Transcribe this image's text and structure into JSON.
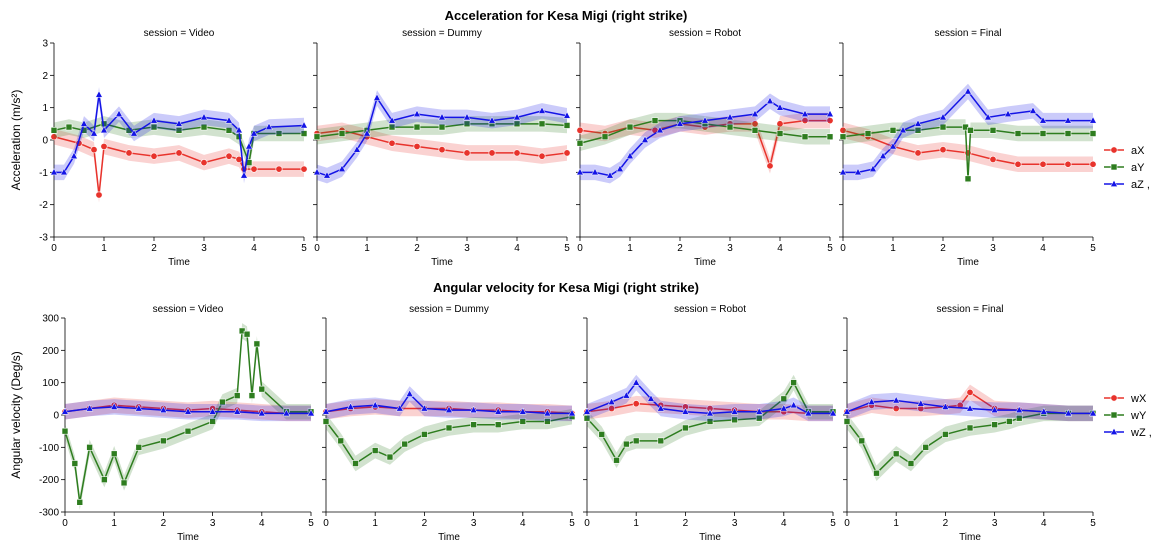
{
  "chart_data": [
    {
      "type": "line",
      "title": "Acceleration for Kesa Migi (right strike)",
      "ylabel": "Acceleration (m/s²)",
      "xlabel": "Time",
      "xlim": [
        0,
        5
      ],
      "ylim": [
        -3,
        3
      ],
      "xticks": [
        0,
        1,
        2,
        3,
        4,
        5
      ],
      "yticks": [
        -3,
        -2,
        -1,
        0,
        1,
        2,
        3
      ],
      "legend": {
        "position": "right",
        "labels": [
          "aX",
          "aY",
          "aZ ,"
        ]
      },
      "colors": {
        "aX": "#e8332c",
        "aY": "#2e7d1f",
        "aZ": "#1414e6"
      },
      "facets": [
        {
          "label": "session = Video",
          "series": [
            {
              "name": "aX",
              "x": [
                0,
                0.5,
                0.8,
                0.9,
                1.0,
                1.5,
                2.0,
                2.5,
                3.0,
                3.5,
                3.7,
                3.8,
                4.0,
                4.5,
                5.0
              ],
              "y": [
                0.1,
                -0.1,
                -0.3,
                -1.7,
                -0.2,
                -0.4,
                -0.5,
                -0.4,
                -0.7,
                -0.5,
                -0.6,
                -0.9,
                -0.9,
                -0.9,
                -0.9
              ]
            },
            {
              "name": "aY",
              "x": [
                0,
                0.3,
                0.6,
                1.0,
                1.5,
                2.0,
                2.5,
                3.0,
                3.5,
                3.7,
                3.9,
                4.0,
                4.5,
                5.0
              ],
              "y": [
                0.3,
                0.4,
                0.3,
                0.5,
                0.3,
                0.4,
                0.3,
                0.4,
                0.3,
                0.1,
                -0.7,
                0.2,
                0.2,
                0.2
              ]
            },
            {
              "name": "aZ",
              "x": [
                0,
                0.2,
                0.4,
                0.6,
                0.8,
                0.9,
                1.0,
                1.3,
                1.6,
                2.0,
                2.5,
                3.0,
                3.5,
                3.7,
                3.8,
                3.9,
                4.0,
                4.3,
                5.0
              ],
              "y": [
                -1.0,
                -1.0,
                -0.5,
                0.5,
                0.2,
                1.4,
                0.3,
                0.8,
                0.2,
                0.6,
                0.5,
                0.7,
                0.6,
                0.3,
                -1.1,
                -0.2,
                0.2,
                0.4,
                0.45
              ]
            }
          ]
        },
        {
          "label": "session = Dummy",
          "series": [
            {
              "name": "aX",
              "x": [
                0,
                0.5,
                1.0,
                1.5,
                2.0,
                2.5,
                3.0,
                3.5,
                4.0,
                4.5,
                5.0
              ],
              "y": [
                0.2,
                0.3,
                0.1,
                -0.1,
                -0.2,
                -0.3,
                -0.4,
                -0.4,
                -0.4,
                -0.5,
                -0.4
              ]
            },
            {
              "name": "aY",
              "x": [
                0,
                0.5,
                1.0,
                1.5,
                2.0,
                2.5,
                3.0,
                3.5,
                4.0,
                4.5,
                5.0
              ],
              "y": [
                0.1,
                0.2,
                0.3,
                0.4,
                0.4,
                0.4,
                0.5,
                0.5,
                0.5,
                0.5,
                0.45
              ]
            },
            {
              "name": "aZ",
              "x": [
                0,
                0.2,
                0.5,
                0.8,
                1.0,
                1.2,
                1.5,
                2.0,
                2.5,
                3.0,
                3.5,
                4.0,
                4.5,
                5.0
              ],
              "y": [
                -1.0,
                -1.1,
                -0.9,
                -0.3,
                0.2,
                1.3,
                0.6,
                0.8,
                0.7,
                0.7,
                0.6,
                0.7,
                0.9,
                0.75
              ]
            }
          ]
        },
        {
          "label": "session = Robot",
          "series": [
            {
              "name": "aX",
              "x": [
                0,
                0.5,
                1.0,
                1.5,
                2.0,
                2.5,
                3.0,
                3.5,
                3.8,
                4.0,
                4.5,
                5.0
              ],
              "y": [
                0.3,
                0.2,
                0.4,
                0.3,
                0.5,
                0.4,
                0.5,
                0.5,
                -0.8,
                0.5,
                0.6,
                0.6
              ]
            },
            {
              "name": "aY",
              "x": [
                0,
                0.5,
                1.0,
                1.5,
                2.0,
                2.5,
                3.0,
                3.5,
                4.0,
                4.5,
                5.0
              ],
              "y": [
                -0.1,
                0.1,
                0.4,
                0.6,
                0.6,
                0.5,
                0.4,
                0.3,
                0.2,
                0.1,
                0.1
              ]
            },
            {
              "name": "aZ",
              "x": [
                0,
                0.3,
                0.6,
                0.8,
                1.0,
                1.3,
                1.6,
                2.0,
                2.5,
                3.0,
                3.5,
                3.8,
                4.0,
                4.5,
                5.0
              ],
              "y": [
                -1.0,
                -1.0,
                -1.1,
                -0.9,
                -0.5,
                0.0,
                0.3,
                0.5,
                0.6,
                0.7,
                0.8,
                1.2,
                1.0,
                0.8,
                0.8
              ]
            }
          ]
        },
        {
          "label": "session = Final",
          "series": [
            {
              "name": "aX",
              "x": [
                0,
                0.5,
                1.0,
                1.5,
                2.0,
                2.5,
                3.0,
                3.5,
                4.0,
                4.5,
                5.0
              ],
              "y": [
                0.3,
                0.1,
                -0.2,
                -0.4,
                -0.3,
                -0.4,
                -0.6,
                -0.75,
                -0.75,
                -0.75,
                -0.75
              ]
            },
            {
              "name": "aY",
              "x": [
                0,
                0.5,
                1.0,
                1.5,
                2.0,
                2.45,
                2.5,
                2.55,
                3.0,
                3.5,
                4.0,
                4.5,
                5.0
              ],
              "y": [
                0.1,
                0.2,
                0.3,
                0.3,
                0.4,
                0.4,
                -1.2,
                0.3,
                0.3,
                0.2,
                0.2,
                0.2,
                0.2
              ]
            },
            {
              "name": "aZ",
              "x": [
                0,
                0.3,
                0.6,
                0.8,
                1.0,
                1.2,
                1.5,
                2.0,
                2.5,
                2.9,
                3.3,
                3.8,
                4.0,
                4.5,
                5.0
              ],
              "y": [
                -1.0,
                -1.0,
                -0.9,
                -0.5,
                -0.2,
                0.3,
                0.5,
                0.7,
                1.5,
                0.7,
                0.8,
                0.9,
                0.6,
                0.6,
                0.6
              ]
            }
          ]
        }
      ]
    },
    {
      "type": "line",
      "title": "Angular velocity for Kesa Migi (right strike)",
      "ylabel": "Angular velocity (Deg/s)",
      "xlabel": "Time",
      "xlim": [
        0,
        5
      ],
      "ylim": [
        -300,
        300
      ],
      "xticks": [
        0,
        1,
        2,
        3,
        4,
        5
      ],
      "yticks": [
        -300,
        -200,
        -100,
        0,
        100,
        200,
        300
      ],
      "legend": {
        "position": "right",
        "labels": [
          "wX",
          "wY",
          "wZ ,"
        ]
      },
      "colors": {
        "wX": "#e8332c",
        "wY": "#2e7d1f",
        "wZ": "#1414e6"
      },
      "facets": [
        {
          "label": "session = Video",
          "series": [
            {
              "name": "wX",
              "x": [
                0,
                0.5,
                1.0,
                1.5,
                2.0,
                2.5,
                3.0,
                3.5,
                4.0,
                4.5,
                5.0
              ],
              "y": [
                10,
                20,
                30,
                25,
                20,
                15,
                20,
                15,
                10,
                5,
                5
              ]
            },
            {
              "name": "wY",
              "x": [
                0,
                0.2,
                0.3,
                0.5,
                0.8,
                1.0,
                1.2,
                1.5,
                2.0,
                2.5,
                3.0,
                3.2,
                3.5,
                3.6,
                3.7,
                3.8,
                3.9,
                4.0,
                4.5,
                5.0
              ],
              "y": [
                -50,
                -150,
                -270,
                -100,
                -200,
                -120,
                -210,
                -100,
                -80,
                -50,
                -20,
                40,
                60,
                260,
                250,
                60,
                220,
                80,
                10,
                10
              ]
            },
            {
              "name": "wZ",
              "x": [
                0,
                0.5,
                1.0,
                1.5,
                2.0,
                2.5,
                3.0,
                3.5,
                4.0,
                4.5,
                5.0
              ],
              "y": [
                10,
                20,
                25,
                20,
                15,
                10,
                10,
                10,
                5,
                5,
                5
              ]
            }
          ]
        },
        {
          "label": "session = Dummy",
          "series": [
            {
              "name": "wX",
              "x": [
                0,
                0.5,
                1.0,
                1.5,
                2.0,
                2.5,
                3.0,
                3.5,
                4.0,
                4.5,
                5.0
              ],
              "y": [
                10,
                20,
                25,
                20,
                20,
                20,
                15,
                15,
                10,
                10,
                5
              ]
            },
            {
              "name": "wY",
              "x": [
                0,
                0.3,
                0.6,
                1.0,
                1.3,
                1.6,
                2.0,
                2.5,
                3.0,
                3.5,
                4.0,
                4.5,
                5.0
              ],
              "y": [
                -20,
                -80,
                -150,
                -110,
                -130,
                -90,
                -60,
                -40,
                -30,
                -30,
                -20,
                -20,
                -5
              ]
            },
            {
              "name": "wZ",
              "x": [
                0,
                0.5,
                1.0,
                1.5,
                1.7,
                2.0,
                2.5,
                3.0,
                3.5,
                4.0,
                4.5,
                5.0
              ],
              "y": [
                10,
                25,
                30,
                20,
                65,
                20,
                15,
                15,
                10,
                10,
                5,
                5
              ]
            }
          ]
        },
        {
          "label": "session = Robot",
          "series": [
            {
              "name": "wX",
              "x": [
                0,
                0.5,
                1.0,
                1.5,
                2.0,
                2.5,
                3.0,
                3.5,
                4.0,
                4.5,
                5.0
              ],
              "y": [
                10,
                20,
                35,
                30,
                25,
                20,
                15,
                10,
                10,
                5,
                5
              ]
            },
            {
              "name": "wY",
              "x": [
                0,
                0.3,
                0.6,
                0.8,
                1.0,
                1.5,
                2.0,
                2.5,
                3.0,
                3.5,
                4.0,
                4.2,
                4.5,
                5.0
              ],
              "y": [
                -10,
                -60,
                -140,
                -90,
                -80,
                -80,
                -40,
                -20,
                -15,
                -10,
                50,
                100,
                10,
                10
              ]
            },
            {
              "name": "wZ",
              "x": [
                0,
                0.5,
                0.8,
                1.0,
                1.3,
                1.5,
                2.0,
                2.5,
                3.0,
                3.5,
                4.0,
                4.2,
                4.5,
                5.0
              ],
              "y": [
                10,
                40,
                60,
                100,
                50,
                20,
                10,
                5,
                10,
                10,
                20,
                30,
                5,
                5
              ]
            }
          ]
        },
        {
          "label": "session = Final",
          "series": [
            {
              "name": "wX",
              "x": [
                0,
                0.5,
                1.0,
                1.5,
                2.0,
                2.3,
                2.5,
                3.0,
                3.5,
                4.0,
                4.5,
                5.0
              ],
              "y": [
                10,
                30,
                20,
                20,
                25,
                30,
                70,
                20,
                15,
                10,
                5,
                5
              ]
            },
            {
              "name": "wY",
              "x": [
                0,
                0.3,
                0.6,
                1.0,
                1.3,
                1.6,
                2.0,
                2.5,
                3.0,
                3.3,
                3.5,
                4.0,
                4.5,
                5.0
              ],
              "y": [
                -20,
                -80,
                -180,
                -120,
                -150,
                -100,
                -60,
                -40,
                -30,
                -20,
                -10,
                5,
                5,
                5
              ]
            },
            {
              "name": "wZ",
              "x": [
                0,
                0.5,
                1.0,
                1.5,
                2.0,
                2.5,
                3.0,
                3.5,
                4.0,
                4.5,
                5.0
              ],
              "y": [
                10,
                40,
                45,
                35,
                25,
                20,
                15,
                15,
                10,
                5,
                5
              ]
            }
          ]
        }
      ]
    }
  ]
}
